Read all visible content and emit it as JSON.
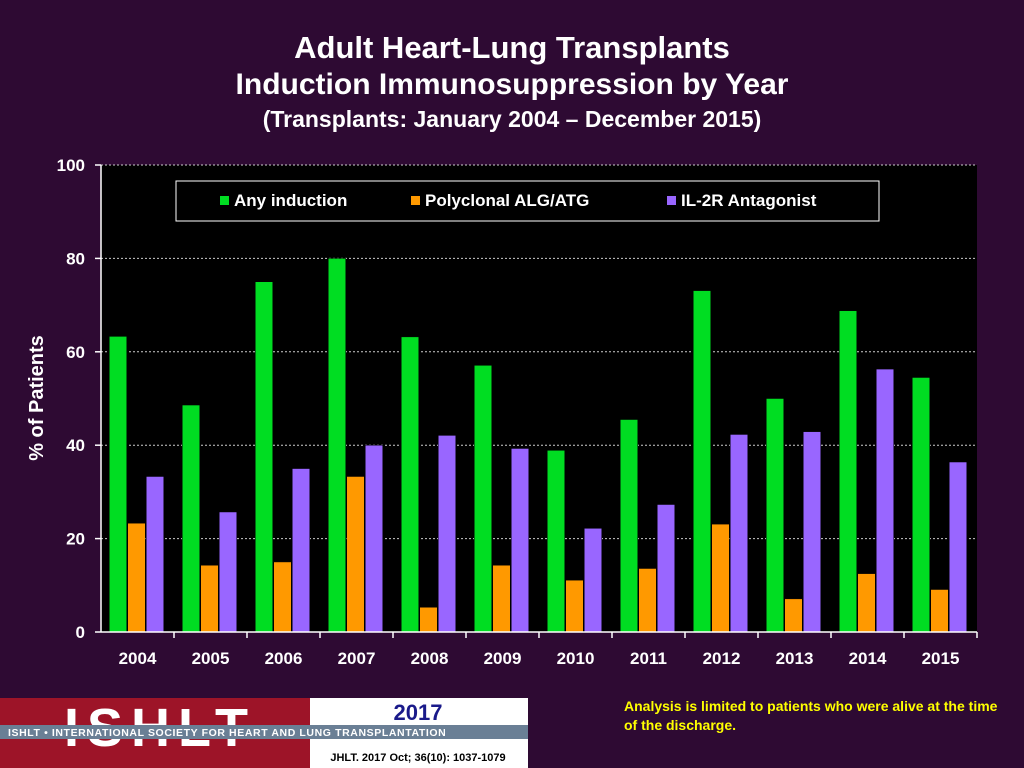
{
  "header": {
    "title": "Adult Heart-Lung Transplants",
    "subtitle": "Induction Immunosuppression by Year",
    "subtitle2": "(Transplants: January 2004 – December 2015)"
  },
  "chart_data": {
    "type": "bar",
    "title": "Adult Heart-Lung Transplants",
    "xlabel": "",
    "ylabel": "% of Patients",
    "ylim": [
      0,
      100
    ],
    "yticks": [
      0,
      20,
      40,
      60,
      80,
      100
    ],
    "grid": true,
    "legend_position": "top",
    "categories": [
      "2004",
      "2005",
      "2006",
      "2007",
      "2008",
      "2009",
      "2010",
      "2011",
      "2012",
      "2013",
      "2014",
      "2015"
    ],
    "series": [
      {
        "name": "Any induction",
        "color": "#00dd22",
        "values": [
          63.3,
          48.6,
          75.0,
          80.0,
          63.2,
          57.1,
          38.9,
          45.5,
          73.1,
          50.0,
          68.8,
          54.5
        ]
      },
      {
        "name": "Polyclonal ALG/ATG",
        "color": "#ff9900",
        "values": [
          23.3,
          14.3,
          15.0,
          33.3,
          5.3,
          14.3,
          11.1,
          13.6,
          23.1,
          7.1,
          12.5,
          9.1
        ]
      },
      {
        "name": "IL-2R Antagonist",
        "color": "#9966ff",
        "values": [
          33.3,
          25.7,
          35.0,
          40.0,
          42.1,
          39.3,
          22.2,
          27.3,
          42.3,
          42.9,
          56.3,
          36.4
        ]
      }
    ]
  },
  "footer": {
    "note": "Analysis is limited to patients who were alive at the time of the discharge.",
    "logo_year": "2017",
    "logo_text": "ISHLT",
    "logo_tagline": "ISHLT • INTERNATIONAL SOCIETY FOR HEART AND LUNG TRANSPLANTATION",
    "citation": "JHLT. 2017 Oct; 36(10): 1037-1079"
  }
}
